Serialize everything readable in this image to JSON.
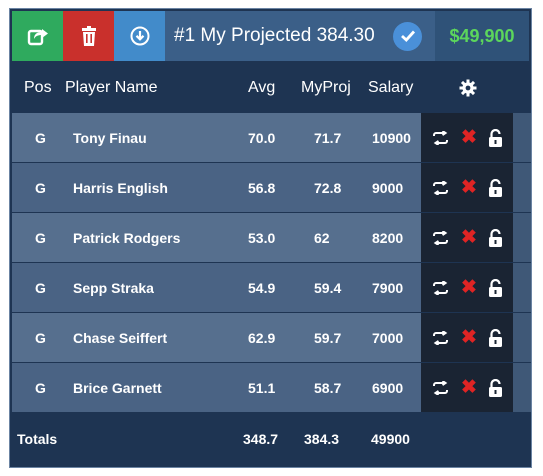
{
  "toolbar": {
    "title": "#1 My Projected 384.30",
    "salary_total": "$49,900",
    "buttons": [
      {
        "name": "export-icon"
      },
      {
        "name": "trash-icon"
      },
      {
        "name": "download-icon"
      }
    ],
    "check_icon": "check-circle-icon"
  },
  "header": {
    "pos": "Pos",
    "player_name": "Player Name",
    "avg": "Avg",
    "myproj": "MyProj",
    "salary": "Salary",
    "settings_icon": "gear-icon"
  },
  "players": [
    {
      "pos": "G",
      "name": "Tony Finau",
      "avg": "70.0",
      "myproj": "71.7",
      "salary": "10900"
    },
    {
      "pos": "G",
      "name": "Harris English",
      "avg": "56.8",
      "myproj": "72.8",
      "salary": "9000"
    },
    {
      "pos": "G",
      "name": "Patrick Rodgers",
      "avg": "53.0",
      "myproj": "62",
      "salary": "8200"
    },
    {
      "pos": "G",
      "name": "Sepp Straka",
      "avg": "54.9",
      "myproj": "59.4",
      "salary": "7900"
    },
    {
      "pos": "G",
      "name": "Chase Seiffert",
      "avg": "62.9",
      "myproj": "59.7",
      "salary": "7000"
    },
    {
      "pos": "G",
      "name": "Brice Garnett",
      "avg": "51.1",
      "myproj": "58.7",
      "salary": "6900"
    }
  ],
  "row_action_icons": [
    "swap-icon",
    "remove-x-icon",
    "unlock-icon"
  ],
  "totals": {
    "label": "Totals",
    "avg": "348.7",
    "myproj": "384.3",
    "salary": "49900"
  },
  "colors": {
    "export": "#2faa5e",
    "delete": "#c9302c",
    "download": "#428bca",
    "salary_total": "#5cd65c",
    "remove_x": "#e02424"
  }
}
